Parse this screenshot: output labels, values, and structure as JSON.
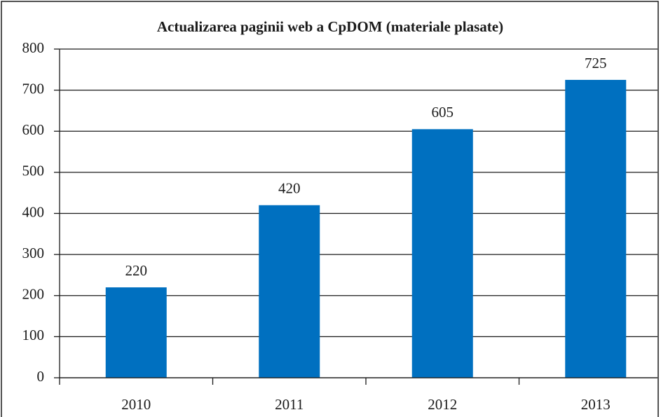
{
  "chart_data": {
    "type": "bar",
    "title": "Actualizarea paginii web a CpDOM (materiale plasate)",
    "categories": [
      "2010",
      "2011",
      "2012",
      "2013"
    ],
    "values": [
      220,
      420,
      605,
      725
    ],
    "color": "#0070c0",
    "ylim": [
      0,
      800
    ],
    "yticks": [
      0,
      100,
      200,
      300,
      400,
      500,
      600,
      700,
      800
    ],
    "grid": true
  }
}
